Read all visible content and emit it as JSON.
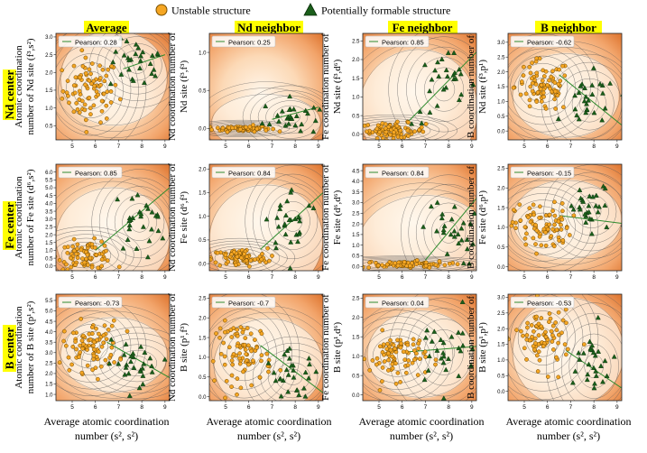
{
  "legend": {
    "unstable_label": "Unstable structure",
    "formable_label": "Potentially formable structure"
  },
  "column_headers": [
    "Average",
    "Nd neighbor",
    "Fe neighbor",
    "B neighbor"
  ],
  "row_headers": [
    "Nd center",
    "Fe center",
    "B center"
  ],
  "x_axis_label": [
    "Average atomic coordination",
    "number (s², s²)"
  ],
  "pearson_prefix": "Pearson: ",
  "colors": {
    "header_bg": "#ffff00",
    "unstable_marker": "#f5a623",
    "formable_marker": "#1a5e1a",
    "fit_line": "#2e8b2e",
    "contour": "#555555"
  },
  "chart_data": [
    {
      "type": "scatter",
      "row": "Nd center",
      "col": "Average",
      "pearson": 0.28,
      "ylabel": [
        "Atomic coordination",
        "number of Nd site (f³,s²)"
      ],
      "xlim": [
        4.3,
        9.2
      ],
      "ylim": [
        0.1,
        3.1
      ],
      "xticks": [
        5,
        6,
        7,
        8,
        9
      ],
      "yticks": [
        "0.5",
        "1.0",
        "1.5",
        "2.0",
        "2.5",
        "3.0"
      ],
      "yvals": [
        0.5,
        1.0,
        1.5,
        2.0,
        2.5,
        3.0
      ],
      "trend": [
        [
          7.2,
          2.1
        ],
        [
          9.0,
          2.5
        ]
      ],
      "unstable_center": [
        5.8,
        1.5
      ],
      "unstable_spread": [
        0.6,
        0.45
      ],
      "formable_center": [
        7.8,
        2.2
      ],
      "formable_spread": [
        0.6,
        0.35
      ]
    },
    {
      "type": "scatter",
      "row": "Nd center",
      "col": "Nd neighbor",
      "pearson": 0.25,
      "ylabel": [
        "Nd coordination number of",
        "Nd site (f³,f³)"
      ],
      "xlim": [
        4.3,
        9.2
      ],
      "ylim": [
        -0.15,
        1.25
      ],
      "xticks": [
        5,
        6,
        7,
        8,
        9
      ],
      "yticks": [
        "0.0",
        "0.5",
        "1.0"
      ],
      "yvals": [
        0.0,
        0.5,
        1.0
      ],
      "trend": [
        [
          7.0,
          0.12
        ],
        [
          9.0,
          0.28
        ]
      ],
      "unstable_center": [
        5.7,
        0.0
      ],
      "unstable_spread": [
        0.6,
        0.02
      ],
      "formable_center": [
        7.8,
        0.15
      ],
      "formable_spread": [
        0.6,
        0.12
      ]
    },
    {
      "type": "scatter",
      "row": "Nd center",
      "col": "Fe neighbor",
      "pearson": 0.85,
      "ylabel": [
        "Fe coordination number of",
        "Nd site (f³,d⁶)"
      ],
      "xlim": [
        4.3,
        9.2
      ],
      "ylim": [
        -0.15,
        2.7
      ],
      "xticks": [
        5,
        6,
        7,
        8,
        9
      ],
      "yticks": [
        "0.0",
        "0.5",
        "1.0",
        "1.5",
        "2.0",
        "2.5"
      ],
      "yvals": [
        0.0,
        0.5,
        1.0,
        1.5,
        2.0,
        2.5
      ],
      "trend": [
        [
          6.2,
          0.3
        ],
        [
          9.2,
          2.2
        ]
      ],
      "unstable_center": [
        5.6,
        0.1
      ],
      "unstable_spread": [
        0.7,
        0.1
      ],
      "formable_center": [
        7.8,
        1.2
      ],
      "formable_spread": [
        0.7,
        0.5
      ]
    },
    {
      "type": "scatter",
      "row": "Nd center",
      "col": "B neighbor",
      "pearson": -0.62,
      "ylabel": [
        "B coordination number of",
        "Nd site (f³,p¹)"
      ],
      "xlim": [
        4.3,
        9.2
      ],
      "ylim": [
        -0.3,
        3.3
      ],
      "xticks": [
        5,
        6,
        7,
        8,
        9
      ],
      "yticks": [
        "0.0",
        "0.5",
        "1.0",
        "1.5",
        "2.0",
        "2.5",
        "3.0"
      ],
      "yvals": [
        0.0,
        0.5,
        1.0,
        1.5,
        2.0,
        2.5,
        3.0
      ],
      "trend": [
        [
          6.5,
          1.9
        ],
        [
          9.2,
          0.2
        ]
      ],
      "unstable_center": [
        5.8,
        1.5
      ],
      "unstable_spread": [
        0.6,
        0.45
      ],
      "formable_center": [
        7.8,
        0.9
      ],
      "formable_spread": [
        0.6,
        0.5
      ]
    },
    {
      "type": "scatter",
      "row": "Fe center",
      "col": "Average",
      "pearson": 0.85,
      "ylabel": [
        "Atomic coordination",
        "number of Fe site (d⁶,s²)"
      ],
      "xlim": [
        4.3,
        9.2
      ],
      "ylim": [
        -0.3,
        6.5
      ],
      "xticks": [
        5,
        6,
        7,
        8,
        9
      ],
      "yticks": [
        "0.0",
        "0.5",
        "1.0",
        "1.5",
        "2.0",
        "2.5",
        "3.0",
        "3.5",
        "4.0",
        "4.5",
        "5.0",
        "5.5",
        "6.0"
      ],
      "yvals": [
        0.0,
        0.5,
        1.0,
        1.5,
        2.0,
        2.5,
        3.0,
        3.5,
        4.0,
        4.5,
        5.0,
        5.5,
        6.0
      ],
      "trend": [
        [
          6.0,
          1.0
        ],
        [
          9.2,
          5.0
        ]
      ],
      "unstable_center": [
        5.6,
        0.7
      ],
      "unstable_spread": [
        0.6,
        0.45
      ],
      "formable_center": [
        7.9,
        2.8
      ],
      "formable_spread": [
        0.6,
        1.0
      ]
    },
    {
      "type": "scatter",
      "row": "Fe center",
      "col": "Nd neighbor",
      "pearson": 0.84,
      "ylabel": [
        "Nd coordination number of",
        "Fe site (d⁶,f³)"
      ],
      "xlim": [
        4.3,
        9.2
      ],
      "ylim": [
        -0.15,
        2.1
      ],
      "xticks": [
        5,
        6,
        7,
        8,
        9
      ],
      "yticks": [
        "0.0",
        "0.5",
        "1.0",
        "1.5",
        "2.0"
      ],
      "yvals": [
        0.0,
        0.5,
        1.0,
        1.5,
        2.0
      ],
      "trend": [
        [
          6.5,
          0.3
        ],
        [
          9.2,
          1.5
        ]
      ],
      "unstable_center": [
        5.6,
        0.12
      ],
      "unstable_spread": [
        0.6,
        0.1
      ],
      "formable_center": [
        7.9,
        0.9
      ],
      "formable_spread": [
        0.6,
        0.35
      ]
    },
    {
      "type": "scatter",
      "row": "Fe center",
      "col": "Fe neighbor",
      "pearson": 0.84,
      "ylabel": [
        "Fe coordination number of",
        "Fe site (d⁶,d⁶)"
      ],
      "xlim": [
        4.3,
        9.2
      ],
      "ylim": [
        -0.2,
        4.8
      ],
      "xticks": [
        5,
        6,
        7,
        8,
        9
      ],
      "yticks": [
        "0.0",
        "0.5",
        "1.0",
        "1.5",
        "2.0",
        "2.5",
        "3.0",
        "3.5",
        "4.0",
        "4.5"
      ],
      "yvals": [
        0.0,
        0.5,
        1.0,
        1.5,
        2.0,
        2.5,
        3.0,
        3.5,
        4.0,
        4.5
      ],
      "trend": [
        [
          7.0,
          0.3
        ],
        [
          9.2,
          3.2
        ]
      ],
      "unstable_center": [
        6.0,
        0.1
      ],
      "unstable_spread": [
        1.0,
        0.08
      ],
      "formable_center": [
        8.0,
        1.6
      ],
      "formable_spread": [
        0.6,
        0.8
      ]
    },
    {
      "type": "scatter",
      "row": "Fe center",
      "col": "B neighbor",
      "pearson": -0.15,
      "ylabel": [
        "B coordination number of",
        "Fe site (d⁶,p¹)"
      ],
      "xlim": [
        4.3,
        9.2
      ],
      "ylim": [
        -0.1,
        2.6
      ],
      "xticks": [
        5,
        6,
        7,
        8,
        9
      ],
      "yticks": [
        "0.0",
        "0.5",
        "1.0",
        "1.5",
        "2.0",
        "2.5"
      ],
      "yvals": [
        0.0,
        0.5,
        1.0,
        1.5,
        2.0,
        2.5
      ],
      "trend": [
        [
          6.5,
          1.3
        ],
        [
          9.2,
          1.1
        ]
      ],
      "unstable_center": [
        5.8,
        1.0
      ],
      "unstable_spread": [
        0.6,
        0.3
      ],
      "formable_center": [
        7.9,
        1.4
      ],
      "formable_spread": [
        0.6,
        0.35
      ]
    },
    {
      "type": "scatter",
      "row": "B center",
      "col": "Average",
      "pearson": -0.73,
      "ylabel": [
        "Atomic coordination",
        "number of B site (p¹,s²)"
      ],
      "xlim": [
        4.3,
        9.2
      ],
      "ylim": [
        0.7,
        5.8
      ],
      "xticks": [
        5,
        6,
        7,
        8,
        9
      ],
      "yticks": [
        "1.0",
        "1.5",
        "2.0",
        "2.5",
        "3.0",
        "3.5",
        "4.0",
        "4.5",
        "5.0",
        "5.5"
      ],
      "yvals": [
        1.0,
        1.5,
        2.0,
        2.5,
        3.0,
        3.5,
        4.0,
        4.5,
        5.0,
        5.5
      ],
      "trend": [
        [
          6.5,
          3.5
        ],
        [
          9.2,
          1.8
        ]
      ],
      "unstable_center": [
        5.8,
        3.3
      ],
      "unstable_spread": [
        0.6,
        0.6
      ],
      "formable_center": [
        7.8,
        2.5
      ],
      "formable_spread": [
        0.7,
        0.5
      ]
    },
    {
      "type": "scatter",
      "row": "B center",
      "col": "Nd neighbor",
      "pearson": -0.7,
      "ylabel": [
        "Nd coordination number of",
        "B site (p¹,f³)"
      ],
      "xlim": [
        4.3,
        9.2
      ],
      "ylim": [
        -0.1,
        2.6
      ],
      "xticks": [
        5,
        6,
        7,
        8,
        9
      ],
      "yticks": [
        "0.0",
        "0.5",
        "1.0",
        "1.5",
        "2.0",
        "2.5"
      ],
      "yvals": [
        0.0,
        0.5,
        1.0,
        1.5,
        2.0,
        2.5
      ],
      "trend": [
        [
          6.5,
          1.3
        ],
        [
          9.2,
          0.1
        ]
      ],
      "unstable_center": [
        5.8,
        1.1
      ],
      "unstable_spread": [
        0.6,
        0.4
      ],
      "formable_center": [
        7.9,
        0.5
      ],
      "formable_spread": [
        0.6,
        0.3
      ]
    },
    {
      "type": "scatter",
      "row": "B center",
      "col": "Fe neighbor",
      "pearson": 0.04,
      "ylabel": [
        "Fe coordination number of",
        "B site (p¹,d⁶)"
      ],
      "xlim": [
        4.3,
        9.2
      ],
      "ylim": [
        -0.15,
        2.6
      ],
      "xticks": [
        5,
        6,
        7,
        8,
        9
      ],
      "yticks": [
        "0.0",
        "0.5",
        "1.0",
        "1.5",
        "2.0",
        "2.5"
      ],
      "yvals": [
        0.0,
        0.5,
        1.0,
        1.5,
        2.0,
        2.5
      ],
      "trend": [
        [
          6.0,
          1.1
        ],
        [
          9.2,
          1.25
        ]
      ],
      "unstable_center": [
        5.8,
        1.0
      ],
      "unstable_spread": [
        0.6,
        0.3
      ],
      "formable_center": [
        7.8,
        1.1
      ],
      "formable_spread": [
        0.7,
        0.5
      ]
    },
    {
      "type": "scatter",
      "row": "B center",
      "col": "B neighbor",
      "pearson": -0.53,
      "ylabel": [
        "B coordination number of",
        "B site (p¹,p¹)"
      ],
      "xlim": [
        4.3,
        9.2
      ],
      "ylim": [
        -0.3,
        3.1
      ],
      "xticks": [
        5,
        6,
        7,
        8,
        9
      ],
      "yticks": [
        "0.0",
        "0.5",
        "1.0",
        "1.5",
        "2.0",
        "2.5",
        "3.0"
      ],
      "yvals": [
        0.0,
        0.5,
        1.0,
        1.5,
        2.0,
        2.5,
        3.0
      ],
      "trend": [
        [
          6.8,
          1.3
        ],
        [
          9.2,
          0.1
        ]
      ],
      "unstable_center": [
        5.8,
        1.7
      ],
      "unstable_spread": [
        0.6,
        0.5
      ],
      "formable_center": [
        8.0,
        0.8
      ],
      "formable_spread": [
        0.6,
        0.6
      ]
    }
  ]
}
